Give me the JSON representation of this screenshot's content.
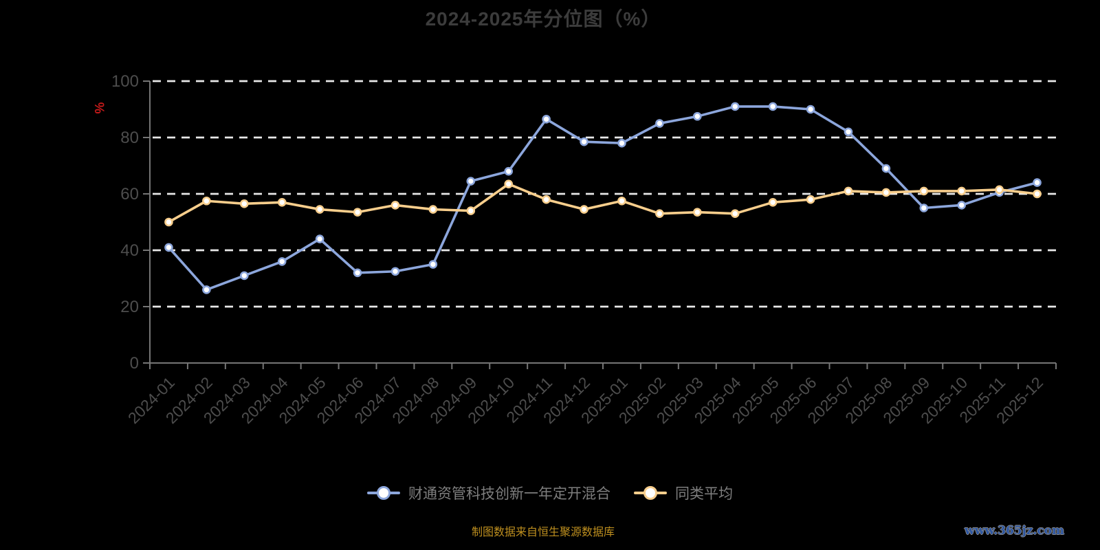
{
  "title": "2024-2025年分位图（%）",
  "y_axis_unit": "%",
  "footer_note": "制图数据来自恒生聚源数据库",
  "watermark": "www.365jz.com",
  "colors": {
    "background": "#000000",
    "title_text": "#3C3C3C",
    "axis_label": "#4D4D4D",
    "axis_line": "#757575",
    "gridline": "#E8E8E8",
    "legend_text": "#7E7E7E",
    "footer_text": "#BE8F1F",
    "watermark_text": "#2B55A2",
    "unit_label": "#C41A1A",
    "marker_fill": "#FFFFFF",
    "series_blue": "#8CA6DC",
    "series_yellow": "#F8CE8C"
  },
  "chart_data": {
    "type": "line",
    "title": "2024-2025年分位图（%）",
    "categories": [
      "2024-01",
      "2024-02",
      "2024-03",
      "2024-04",
      "2024-05",
      "2024-06",
      "2024-07",
      "2024-08",
      "2024-09",
      "2024-10",
      "2024-11",
      "2024-12",
      "2025-01",
      "2025-02",
      "2025-03",
      "2025-04",
      "2025-05",
      "2025-06",
      "2025-07",
      "2025-08",
      "2025-09",
      "2025-10",
      "2025-11",
      "2025-12"
    ],
    "series": [
      {
        "name": "财通资管科技创新一年定开混合",
        "color": "#8CA6DC",
        "values": [
          41,
          26,
          31,
          36,
          44,
          32,
          32.5,
          35,
          64.5,
          68,
          86.5,
          78.5,
          78,
          85,
          87.5,
          91,
          91,
          90,
          82,
          69,
          55,
          56,
          60.5,
          64
        ]
      },
      {
        "name": "同类平均",
        "color": "#F8CE8C",
        "values": [
          50,
          57.5,
          56.5,
          57,
          54.5,
          53.5,
          56,
          54.5,
          54,
          63.5,
          58,
          54.5,
          57.5,
          53,
          53.5,
          53,
          57,
          58,
          61,
          60.5,
          61,
          61,
          61.5,
          60
        ]
      }
    ],
    "xlabel": "",
    "ylabel": "%",
    "ylim": [
      0,
      100
    ],
    "yticks": [
      0,
      20,
      40,
      60,
      80,
      100
    ],
    "grid": "horizontal-dashed",
    "legend_position": "bottom",
    "x_label_rotation": 45
  }
}
